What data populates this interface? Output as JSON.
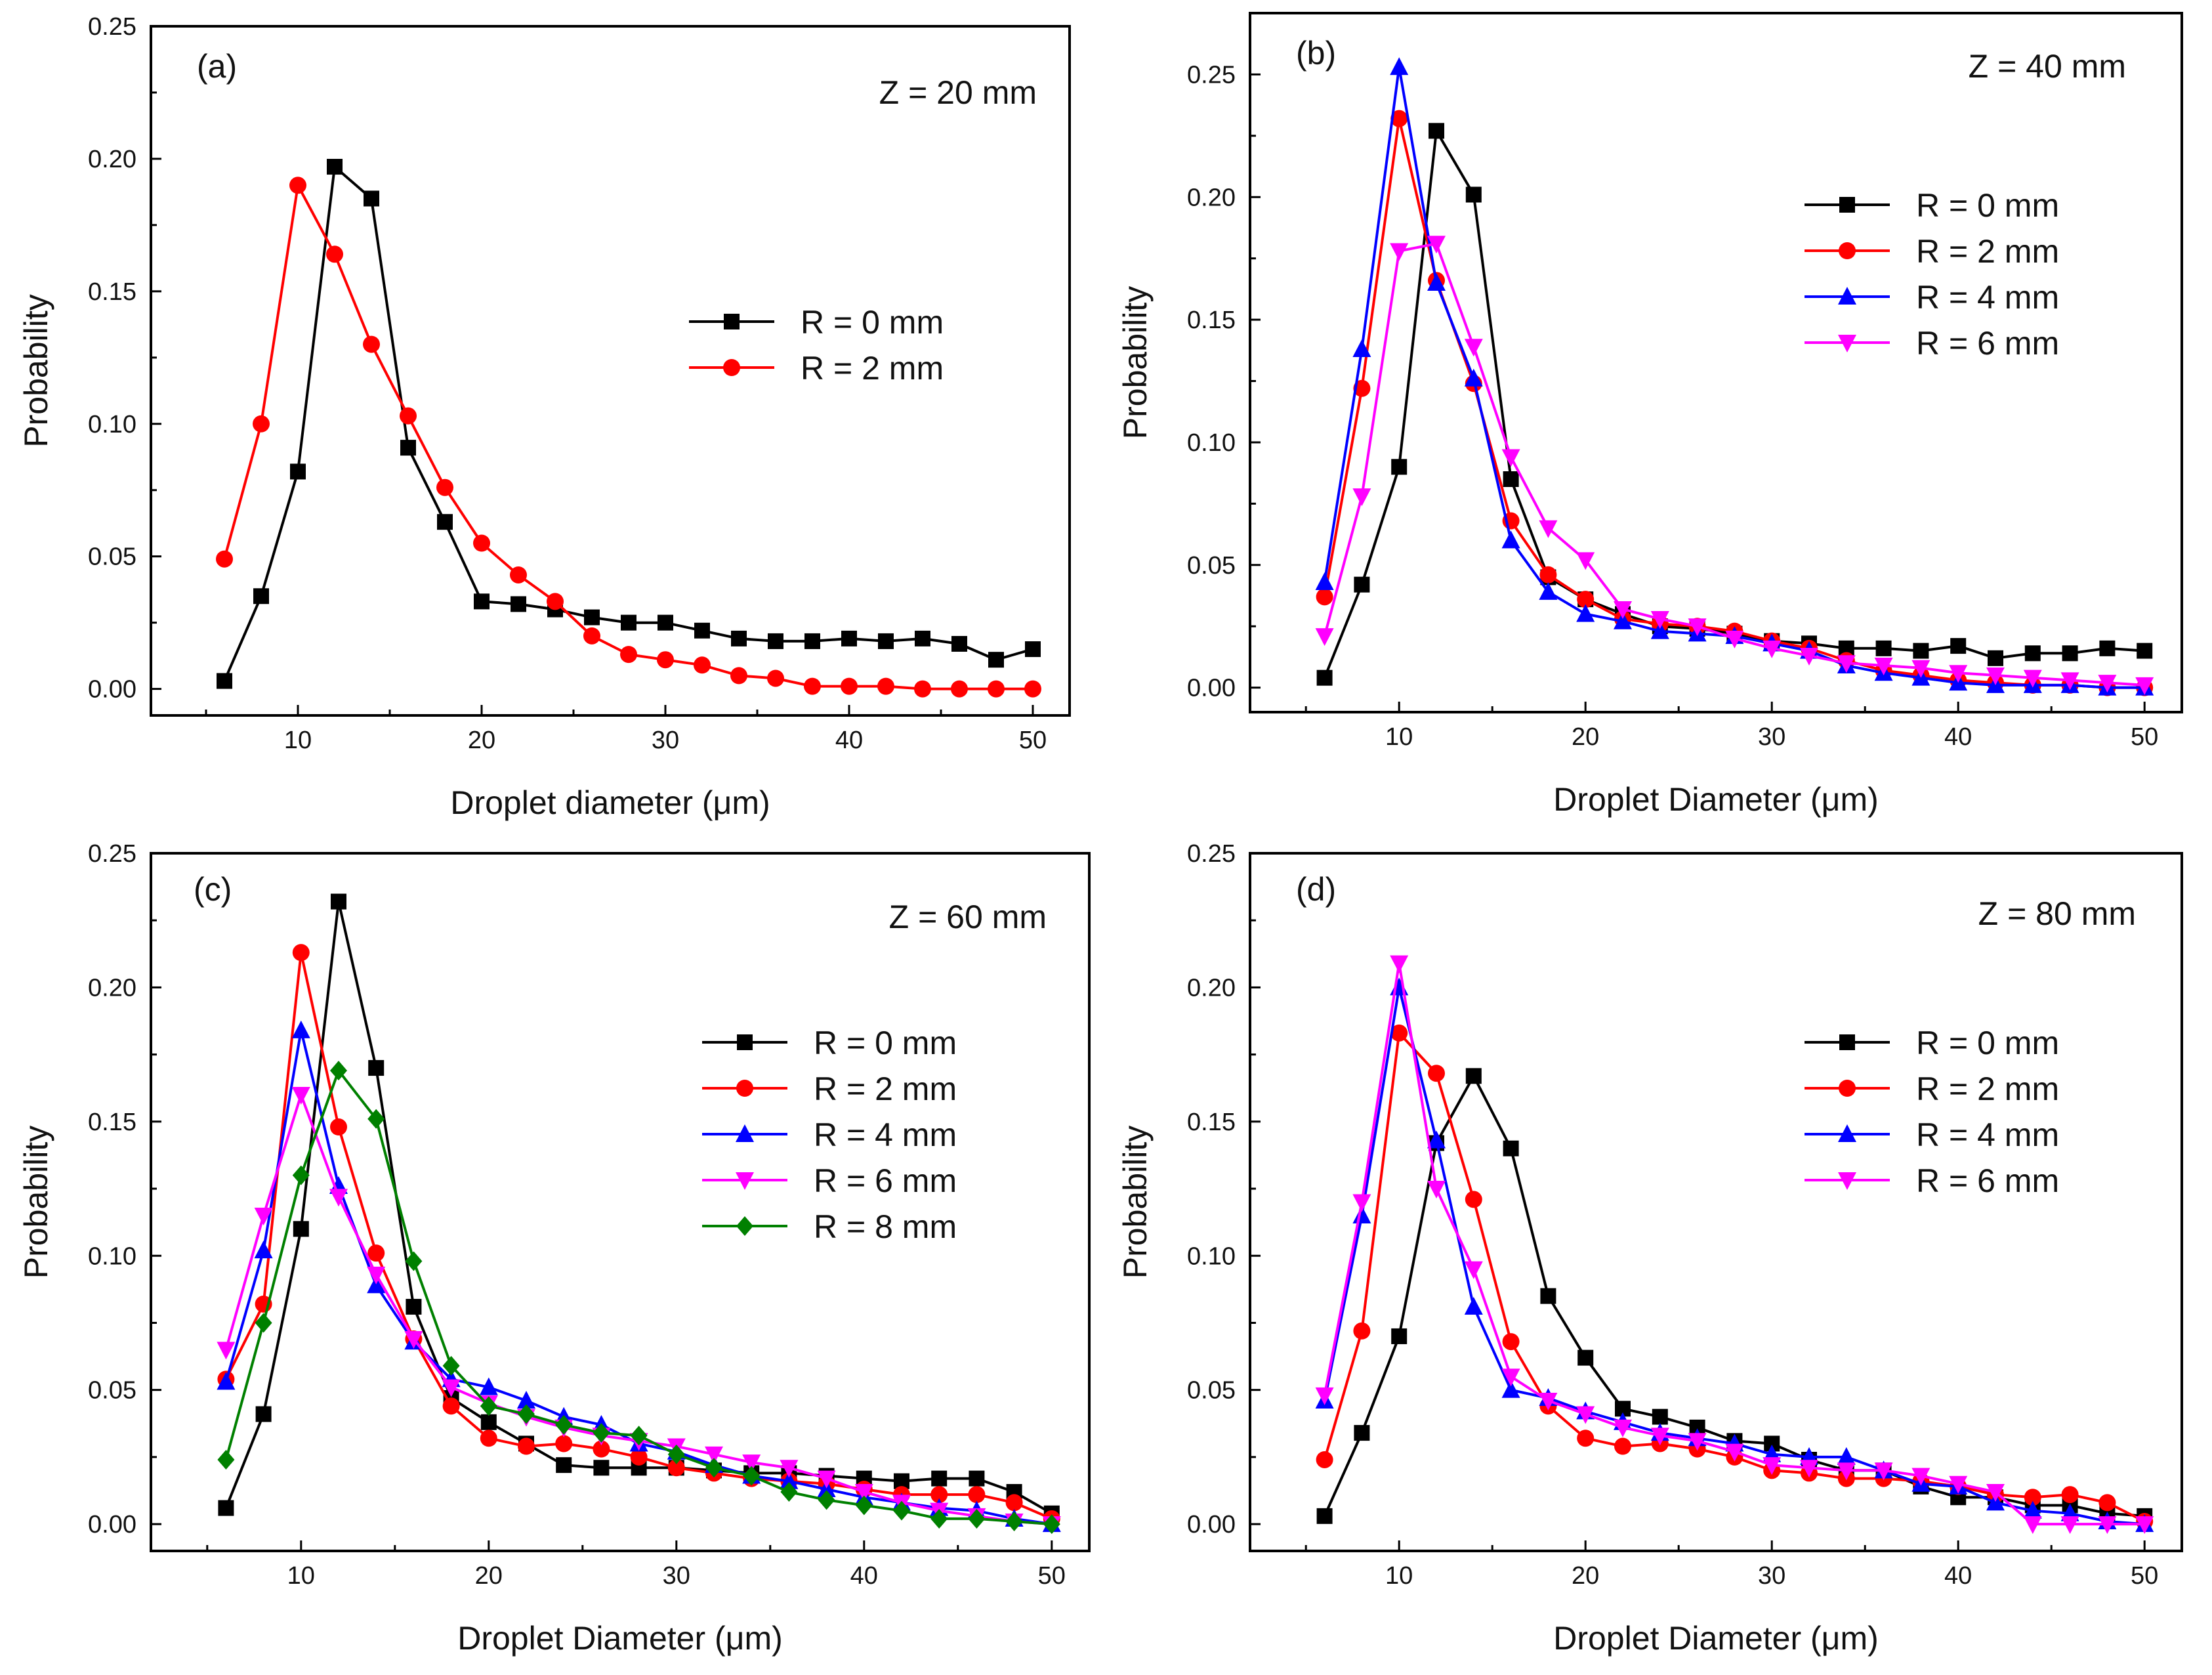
{
  "chart_data": [
    {
      "type": "line",
      "panel_label": "(a)",
      "annotation": "Z = 20 mm",
      "xlabel": "Droplet diameter (μm)",
      "ylabel": "Probability",
      "xlim": [
        2,
        52
      ],
      "ylim": [
        -0.01,
        0.25
      ],
      "x_ticks": [
        10,
        20,
        30,
        40,
        50
      ],
      "y_ticks": [
        "0.00",
        "0.05",
        "0.10",
        "0.15",
        "0.20",
        "0.25"
      ],
      "legend_position": "middle-right",
      "x": [
        6,
        8,
        10,
        12,
        14,
        16,
        18,
        20,
        22,
        24,
        26,
        28,
        30,
        32,
        34,
        36,
        38,
        40,
        42,
        44,
        46,
        48,
        50
      ],
      "series": [
        {
          "name": "R = 0 mm",
          "color": "#000000",
          "marker": "square",
          "values": [
            0.003,
            0.035,
            0.082,
            0.197,
            0.185,
            0.091,
            0.063,
            0.033,
            0.032,
            0.03,
            0.027,
            0.025,
            0.025,
            0.022,
            0.019,
            0.018,
            0.018,
            0.019,
            0.018,
            0.019,
            0.017,
            0.011,
            0.015
          ]
        },
        {
          "name": "R = 2 mm",
          "color": "#ff0000",
          "marker": "circle",
          "values": [
            0.049,
            0.1,
            0.19,
            0.164,
            0.13,
            0.103,
            0.076,
            0.055,
            0.043,
            0.033,
            0.02,
            0.013,
            0.011,
            0.009,
            0.005,
            0.004,
            0.001,
            0.001,
            0.001,
            0.0,
            0.0,
            0.0,
            0.0
          ]
        }
      ]
    },
    {
      "type": "line",
      "panel_label": "(b)",
      "annotation": "Z = 40 mm",
      "xlabel": "Droplet Diameter (μm)",
      "ylabel": "Probability",
      "xlim": [
        2,
        52
      ],
      "ylim": [
        -0.01,
        0.275
      ],
      "x_ticks": [
        10,
        20,
        30,
        40,
        50
      ],
      "y_ticks": [
        "0.00",
        "0.05",
        "0.10",
        "0.15",
        "0.20",
        "0.25"
      ],
      "legend_position": "upper-right",
      "x": [
        6,
        8,
        10,
        12,
        14,
        16,
        18,
        20,
        22,
        24,
        26,
        28,
        30,
        32,
        34,
        36,
        38,
        40,
        42,
        44,
        46,
        48,
        50
      ],
      "series": [
        {
          "name": "R = 0 mm",
          "color": "#000000",
          "marker": "square",
          "values": [
            0.004,
            0.042,
            0.09,
            0.227,
            0.201,
            0.085,
            0.045,
            0.036,
            0.03,
            0.025,
            0.024,
            0.022,
            0.019,
            0.018,
            0.016,
            0.016,
            0.015,
            0.017,
            0.012,
            0.014,
            0.014,
            0.016,
            0.015
          ]
        },
        {
          "name": "R = 2 mm",
          "color": "#ff0000",
          "marker": "circle",
          "values": [
            0.037,
            0.122,
            0.232,
            0.166,
            0.124,
            0.068,
            0.046,
            0.036,
            0.028,
            0.026,
            0.025,
            0.023,
            0.019,
            0.016,
            0.011,
            0.007,
            0.005,
            0.003,
            0.002,
            0.001,
            0.001,
            0.0,
            0.0
          ]
        },
        {
          "name": "R = 4 mm",
          "color": "#0000ff",
          "marker": "triangle-up",
          "values": [
            0.043,
            0.138,
            0.253,
            0.165,
            0.126,
            0.06,
            0.039,
            0.03,
            0.027,
            0.023,
            0.022,
            0.021,
            0.018,
            0.015,
            0.009,
            0.006,
            0.004,
            0.002,
            0.001,
            0.001,
            0.001,
            0.0,
            0.0
          ]
        },
        {
          "name": "R = 6 mm",
          "color": "#ff00ff",
          "marker": "triangle-down",
          "values": [
            0.021,
            0.078,
            0.178,
            0.181,
            0.139,
            0.094,
            0.065,
            0.052,
            0.032,
            0.028,
            0.025,
            0.02,
            0.016,
            0.013,
            0.01,
            0.009,
            0.008,
            0.006,
            0.005,
            0.004,
            0.003,
            0.002,
            0.001
          ]
        }
      ]
    },
    {
      "type": "line",
      "panel_label": "(c)",
      "annotation": "Z = 60 mm",
      "xlabel": "Droplet Diameter (μm)",
      "ylabel": "Probability",
      "xlim": [
        2,
        52
      ],
      "ylim": [
        -0.01,
        0.25
      ],
      "x_ticks": [
        10,
        20,
        30,
        40,
        50
      ],
      "y_ticks": [
        "0.00",
        "0.05",
        "0.10",
        "0.15",
        "0.20",
        "0.25"
      ],
      "legend_position": "middle-right",
      "x": [
        6,
        8,
        10,
        12,
        14,
        16,
        18,
        20,
        22,
        24,
        26,
        28,
        30,
        32,
        34,
        36,
        38,
        40,
        42,
        44,
        46,
        48,
        50
      ],
      "series": [
        {
          "name": "R = 0 mm",
          "color": "#000000",
          "marker": "square",
          "values": [
            0.006,
            0.041,
            0.11,
            0.232,
            0.17,
            0.081,
            0.047,
            0.038,
            0.03,
            0.022,
            0.021,
            0.021,
            0.021,
            0.02,
            0.019,
            0.019,
            0.018,
            0.017,
            0.016,
            0.017,
            0.017,
            0.012,
            0.004
          ]
        },
        {
          "name": "R = 2 mm",
          "color": "#ff0000",
          "marker": "circle",
          "values": [
            0.054,
            0.082,
            0.213,
            0.148,
            0.101,
            0.069,
            0.044,
            0.032,
            0.029,
            0.03,
            0.028,
            0.025,
            0.021,
            0.019,
            0.017,
            0.016,
            0.015,
            0.013,
            0.011,
            0.011,
            0.011,
            0.008,
            0.002
          ]
        },
        {
          "name": "R = 4 mm",
          "color": "#0000ff",
          "marker": "triangle-up",
          "values": [
            0.053,
            0.102,
            0.184,
            0.126,
            0.089,
            0.068,
            0.054,
            0.051,
            0.046,
            0.04,
            0.037,
            0.03,
            0.027,
            0.022,
            0.018,
            0.016,
            0.013,
            0.01,
            0.008,
            0.006,
            0.005,
            0.002,
            0.0
          ]
        },
        {
          "name": "R = 6 mm",
          "color": "#ff00ff",
          "marker": "triangle-down",
          "values": [
            0.065,
            0.115,
            0.16,
            0.122,
            0.093,
            0.069,
            0.051,
            0.045,
            0.04,
            0.036,
            0.033,
            0.031,
            0.029,
            0.026,
            0.023,
            0.021,
            0.017,
            0.012,
            0.008,
            0.005,
            0.003,
            0.001,
            0.0
          ]
        },
        {
          "name": "R = 8 mm",
          "color": "#008000",
          "marker": "diamond",
          "values": [
            0.024,
            0.075,
            0.13,
            0.169,
            0.151,
            0.098,
            0.059,
            0.044,
            0.041,
            0.037,
            0.034,
            0.033,
            0.026,
            0.021,
            0.018,
            0.012,
            0.009,
            0.007,
            0.005,
            0.002,
            0.002,
            0.001,
            0.0
          ]
        }
      ]
    },
    {
      "type": "line",
      "panel_label": "(d)",
      "annotation": "Z = 80 mm",
      "xlabel": "Droplet Diameter (μm)",
      "ylabel": "Probability",
      "xlim": [
        2,
        52
      ],
      "ylim": [
        -0.01,
        0.25
      ],
      "x_ticks": [
        10,
        20,
        30,
        40,
        50
      ],
      "y_ticks": [
        "0.00",
        "0.05",
        "0.10",
        "0.15",
        "0.20",
        "0.25"
      ],
      "legend_position": "middle-right",
      "x": [
        6,
        8,
        10,
        12,
        14,
        16,
        18,
        20,
        22,
        24,
        26,
        28,
        30,
        32,
        34,
        36,
        38,
        40,
        42,
        44,
        46,
        48,
        50
      ],
      "series": [
        {
          "name": "R = 0 mm",
          "color": "#000000",
          "marker": "square",
          "values": [
            0.003,
            0.034,
            0.07,
            0.142,
            0.167,
            0.14,
            0.085,
            0.062,
            0.043,
            0.04,
            0.036,
            0.031,
            0.03,
            0.024,
            0.02,
            0.02,
            0.014,
            0.01,
            0.01,
            0.007,
            0.007,
            0.004,
            0.003
          ]
        },
        {
          "name": "R = 2 mm",
          "color": "#ff0000",
          "marker": "circle",
          "values": [
            0.024,
            0.072,
            0.183,
            0.168,
            0.121,
            0.068,
            0.044,
            0.032,
            0.029,
            0.03,
            0.028,
            0.025,
            0.02,
            0.019,
            0.017,
            0.017,
            0.016,
            0.014,
            0.011,
            0.01,
            0.011,
            0.008,
            0.001
          ]
        },
        {
          "name": "R = 4 mm",
          "color": "#0000ff",
          "marker": "triangle-up",
          "values": [
            0.046,
            0.115,
            0.2,
            0.143,
            0.081,
            0.05,
            0.047,
            0.042,
            0.038,
            0.034,
            0.032,
            0.03,
            0.026,
            0.025,
            0.025,
            0.02,
            0.015,
            0.014,
            0.008,
            0.005,
            0.004,
            0.001,
            0.0
          ]
        },
        {
          "name": "R = 6 mm",
          "color": "#ff00ff",
          "marker": "triangle-down",
          "values": [
            0.048,
            0.12,
            0.209,
            0.125,
            0.095,
            0.055,
            0.046,
            0.041,
            0.036,
            0.033,
            0.031,
            0.027,
            0.022,
            0.021,
            0.02,
            0.02,
            0.018,
            0.015,
            0.012,
            0.0,
            0.0,
            0.0,
            0.0
          ]
        }
      ]
    }
  ]
}
